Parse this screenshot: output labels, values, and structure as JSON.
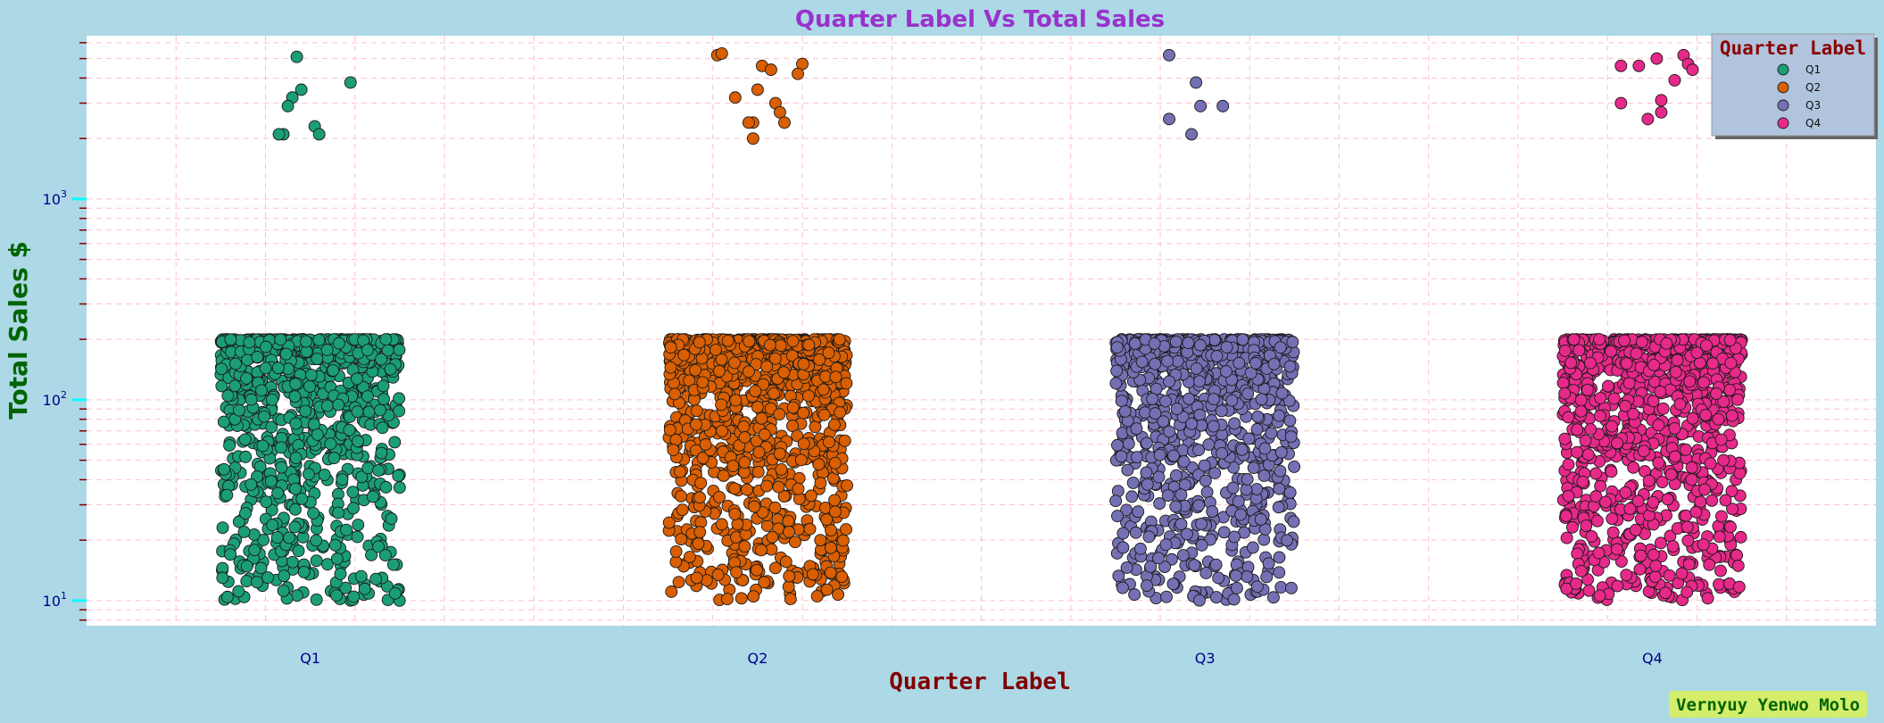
{
  "chart_data": {
    "type": "scatter",
    "variant": "strip (jittered categorical scatter)",
    "title": "Quarter Label Vs Total Sales",
    "xlabel": "Quarter Label",
    "ylabel": "Total Sales $",
    "categories": [
      "Q1",
      "Q2",
      "Q3",
      "Q4"
    ],
    "y_scale": "log",
    "ylim": [
      7.5,
      6500
    ],
    "y_ticks": [
      {
        "value": 10,
        "base": "10",
        "exp": "1"
      },
      {
        "value": 100,
        "base": "10",
        "exp": "2"
      },
      {
        "value": 1000,
        "base": "10",
        "exp": "3"
      }
    ],
    "grid": true,
    "legend": {
      "title": "Quarter Label",
      "position": "top-right"
    },
    "series": [
      {
        "name": "Q1",
        "color": "#1b9e77",
        "bulk_range": [
          10,
          200
        ],
        "bulk_count": 900,
        "outliers": [
          {
            "jitter": -0.03,
            "value": 5100
          },
          {
            "jitter": 0.09,
            "value": 3800
          },
          {
            "jitter": -0.02,
            "value": 3500
          },
          {
            "jitter": -0.04,
            "value": 3200
          },
          {
            "jitter": -0.05,
            "value": 2900
          },
          {
            "jitter": 0.01,
            "value": 2300
          },
          {
            "jitter": 0.02,
            "value": 2100
          },
          {
            "jitter": -0.06,
            "value": 2100
          },
          {
            "jitter": -0.07,
            "value": 2100
          }
        ]
      },
      {
        "name": "Q2",
        "color": "#d95f02",
        "bulk_range": [
          10,
          200
        ],
        "bulk_count": 1000,
        "outliers": [
          {
            "jitter": -0.09,
            "value": 5200
          },
          {
            "jitter": -0.08,
            "value": 5300
          },
          {
            "jitter": 0.01,
            "value": 4600
          },
          {
            "jitter": 0.03,
            "value": 4400
          },
          {
            "jitter": 0.1,
            "value": 4700
          },
          {
            "jitter": 0.09,
            "value": 4200
          },
          {
            "jitter": 0.0,
            "value": 3500
          },
          {
            "jitter": 0.04,
            "value": 3000
          },
          {
            "jitter": -0.05,
            "value": 3200
          },
          {
            "jitter": 0.05,
            "value": 2700
          },
          {
            "jitter": 0.06,
            "value": 2400
          },
          {
            "jitter": -0.01,
            "value": 2400
          },
          {
            "jitter": -0.02,
            "value": 2400
          },
          {
            "jitter": -0.01,
            "value": 2000
          }
        ]
      },
      {
        "name": "Q3",
        "color": "#7570b3",
        "bulk_range": [
          10,
          200
        ],
        "bulk_count": 900,
        "outliers": [
          {
            "jitter": -0.08,
            "value": 5200
          },
          {
            "jitter": -0.02,
            "value": 3800
          },
          {
            "jitter": -0.01,
            "value": 2900
          },
          {
            "jitter": 0.04,
            "value": 2900
          },
          {
            "jitter": -0.08,
            "value": 2500
          },
          {
            "jitter": -0.03,
            "value": 2100
          }
        ]
      },
      {
        "name": "Q4",
        "color": "#e7298a",
        "bulk_range": [
          10,
          200
        ],
        "bulk_count": 950,
        "outliers": [
          {
            "jitter": -0.07,
            "value": 4600
          },
          {
            "jitter": -0.03,
            "value": 4600
          },
          {
            "jitter": 0.01,
            "value": 5000
          },
          {
            "jitter": 0.07,
            "value": 5200
          },
          {
            "jitter": 0.08,
            "value": 4700
          },
          {
            "jitter": 0.09,
            "value": 4400
          },
          {
            "jitter": 0.05,
            "value": 3900
          },
          {
            "jitter": -0.07,
            "value": 3000
          },
          {
            "jitter": 0.02,
            "value": 3100
          },
          {
            "jitter": 0.02,
            "value": 2700
          },
          {
            "jitter": -0.01,
            "value": 2500
          }
        ]
      }
    ]
  },
  "watermark": "Vernyuy Yenwo Molo",
  "colors": {
    "page_background": "#add8e6",
    "plot_background": "#ffffff",
    "grid": "#ffc0cb",
    "title": "#9932cc",
    "xlabel": "#800000",
    "ylabel": "#006400",
    "tick_labels": "#00008b",
    "major_tick": "#00ffff",
    "minor_tick": "#800000",
    "legend_background": "#b0c4de",
    "legend_title": "#8b0000",
    "watermark_background": "#d4ed6b",
    "watermark_text": "#006400"
  }
}
